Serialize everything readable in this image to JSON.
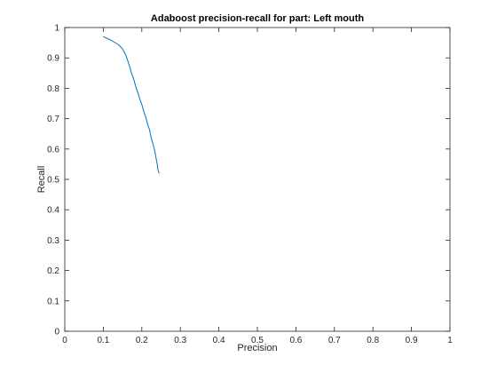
{
  "chart_data": {
    "type": "line",
    "title": "Adaboost precision-recall for part: Left mouth",
    "xlabel": "Precision",
    "ylabel": "Recall",
    "xlim": [
      0,
      1
    ],
    "ylim": [
      0,
      1
    ],
    "xticks": [
      0,
      0.1,
      0.2,
      0.3,
      0.4,
      0.5,
      0.6,
      0.7,
      0.8,
      0.9,
      1
    ],
    "yticks": [
      0,
      0.1,
      0.2,
      0.3,
      0.4,
      0.5,
      0.6,
      0.7,
      0.8,
      0.9,
      1
    ],
    "xtick_labels": [
      "0",
      "0.1",
      "0.2",
      "0.3",
      "0.4",
      "0.5",
      "0.6",
      "0.7",
      "0.8",
      "0.9",
      "1"
    ],
    "ytick_labels": [
      "0",
      "0.1",
      "0.2",
      "0.3",
      "0.4",
      "0.5",
      "0.6",
      "0.7",
      "0.8",
      "0.9",
      "1"
    ],
    "grid": false,
    "box": true,
    "series": [
      {
        "color": "#0072BD",
        "x": [
          0.1,
          0.11,
          0.12,
          0.13,
          0.14,
          0.145,
          0.15,
          0.153,
          0.157,
          0.16,
          0.163,
          0.166,
          0.17,
          0.172,
          0.176,
          0.18,
          0.183,
          0.186,
          0.19,
          0.193,
          0.196,
          0.2,
          0.203,
          0.206,
          0.21,
          0.213,
          0.216,
          0.22,
          0.222,
          0.225,
          0.228,
          0.231,
          0.234,
          0.236,
          0.238,
          0.24,
          0.241,
          0.242,
          0.243,
          0.244,
          0.245
        ],
        "y": [
          0.97,
          0.964,
          0.958,
          0.951,
          0.943,
          0.936,
          0.93,
          0.922,
          0.913,
          0.903,
          0.893,
          0.88,
          0.866,
          0.854,
          0.84,
          0.825,
          0.811,
          0.798,
          0.785,
          0.772,
          0.76,
          0.747,
          0.733,
          0.72,
          0.706,
          0.692,
          0.678,
          0.664,
          0.65,
          0.635,
          0.621,
          0.607,
          0.592,
          0.577,
          0.563,
          0.55,
          0.54,
          0.532,
          0.527,
          0.523,
          0.52
        ]
      }
    ]
  }
}
